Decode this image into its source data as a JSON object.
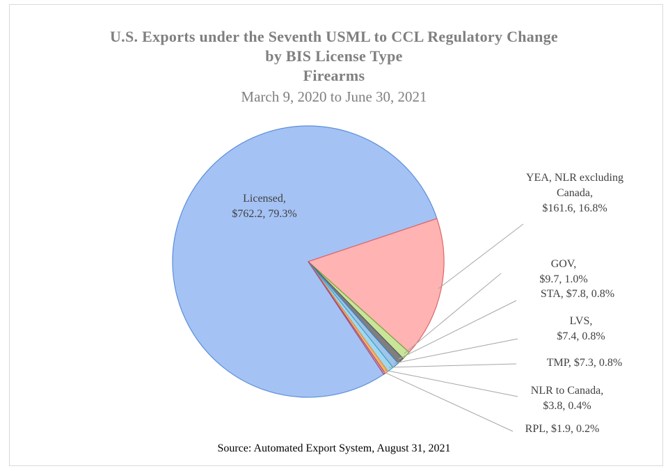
{
  "chart_data": {
    "type": "pie",
    "title": [
      "U.S. Exports under the Seventh USML to CCL Regulatory Change",
      "by BIS License Type",
      "Firearms"
    ],
    "subtitle": "March 9, 2020 to June 30, 2021",
    "source": "Source: Automated Export System, August 31, 2021",
    "slices": [
      {
        "category": "Licensed",
        "value": 762.2,
        "percent": 79.3,
        "color": "#a4c2f4",
        "stroke": "#5b8fd9",
        "label": [
          "Licensed,",
          "$762.2, 79.3%"
        ]
      },
      {
        "category": "YEA, NLR excluding Canada",
        "value": 161.6,
        "percent": 16.8,
        "color": "#ffb3b3",
        "stroke": "#e06666",
        "label": [
          "YEA, NLR excluding",
          "Canada,",
          "$161.6, 16.8%"
        ]
      },
      {
        "category": "GOV",
        "value": 9.7,
        "percent": 1.0,
        "color": "#c9e59a",
        "stroke": "#7aa33c",
        "label": [
          "GOV,",
          "$9.7, 1.0%"
        ]
      },
      {
        "category": "STA",
        "value": 7.8,
        "percent": 0.8,
        "color": "#7f7f7f",
        "stroke": "#595959",
        "label": [
          "STA, $7.8, 0.8%"
        ]
      },
      {
        "category": "LVS",
        "value": 7.4,
        "percent": 0.8,
        "color": "#9fc5e8",
        "stroke": "#3d85c6",
        "label": [
          "LVS,",
          "$7.4, 0.8%"
        ]
      },
      {
        "category": "TMP",
        "value": 7.3,
        "percent": 0.8,
        "color": "#a0d8ef",
        "stroke": "#45a0c8",
        "label": [
          "TMP, $7.3, 0.8%"
        ]
      },
      {
        "category": "NLR to Canada",
        "value": 3.8,
        "percent": 0.4,
        "color": "#f6b26b",
        "stroke": "#e69138",
        "label": [
          "NLR to Canada,",
          "$3.8, 0.4%"
        ]
      },
      {
        "category": "RPL",
        "value": 1.9,
        "percent": 0.2,
        "color": "#d5a6bd",
        "stroke": "#a64d79",
        "label": [
          "RPL, $1.9, 0.2%"
        ]
      }
    ]
  }
}
